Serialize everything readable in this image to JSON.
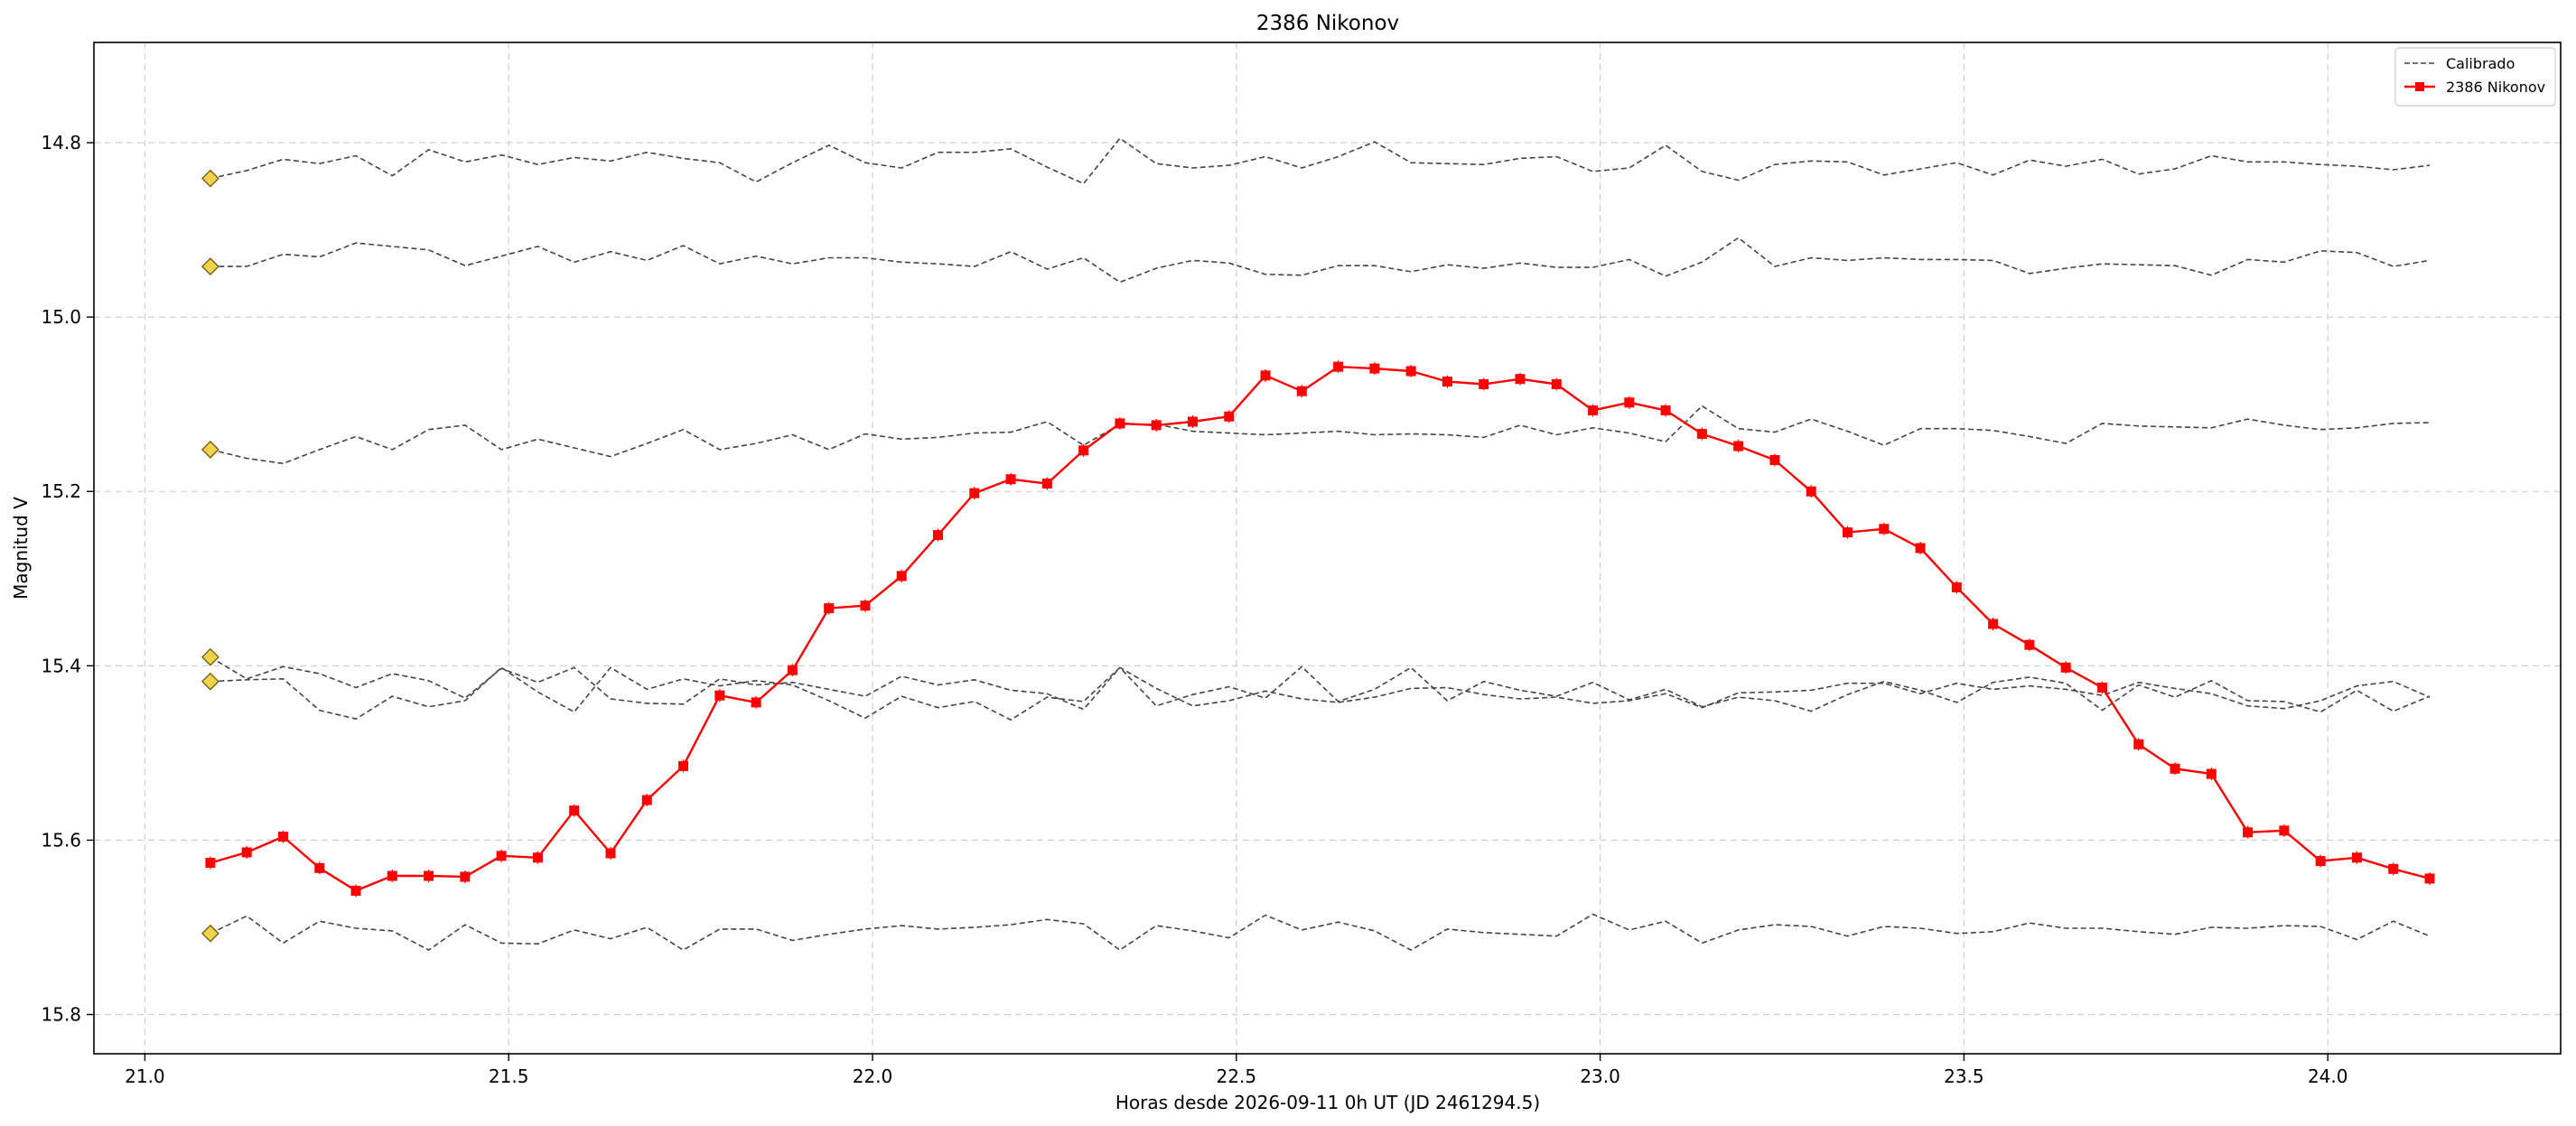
{
  "chart_data": {
    "type": "line",
    "title": "2386 Nikonov",
    "xlabel": "Horas desde 2026-09-11 0h UT (JD 2461294.5)",
    "ylabel": "Magnitud V",
    "xlim": [
      20.93,
      24.32
    ],
    "ylim": [
      15.845,
      14.685
    ],
    "y_inverted": true,
    "grid": true,
    "legend_position": "top-right",
    "x_ticks": [
      21.0,
      21.5,
      22.0,
      22.5,
      23.0,
      23.5,
      24.0
    ],
    "x_tick_labels": [
      "21.0",
      "21.5",
      "22.0",
      "22.5",
      "23.0",
      "23.5",
      "24.0"
    ],
    "y_ticks": [
      14.8,
      15.0,
      15.2,
      15.4,
      15.6,
      15.8
    ],
    "y_tick_labels": [
      "14.8",
      "15.0",
      "15.2",
      "15.4",
      "15.6",
      "15.8"
    ],
    "legend": [
      {
        "label": "Calibrado",
        "style": "dashed",
        "color": "#444444"
      },
      {
        "label": "2386 Nikonov",
        "style": "line-square",
        "color": "#ff0000"
      }
    ],
    "x_start": 21.09,
    "x_step": 0.05,
    "target": {
      "name": "2386 Nikonov",
      "color": "#ff0000",
      "values": [
        15.626,
        15.614,
        15.596,
        15.632,
        15.658,
        15.641,
        15.641,
        15.642,
        15.618,
        15.62,
        15.566,
        15.615,
        15.554,
        15.515,
        15.434,
        15.442,
        15.405,
        15.334,
        15.331,
        15.297,
        15.25,
        15.202,
        15.186,
        15.191,
        15.153,
        15.122,
        15.124,
        15.12,
        15.114,
        15.067,
        15.085,
        15.057,
        15.059,
        15.062,
        15.074,
        15.077,
        15.071,
        15.077,
        15.107,
        15.098,
        15.107,
        15.134,
        15.148,
        15.164,
        15.2,
        15.247,
        15.243,
        15.265,
        15.31,
        15.352,
        15.376,
        15.402,
        15.425,
        15.49,
        15.518,
        15.524,
        15.591,
        15.589,
        15.624,
        15.62,
        15.633,
        15.644
      ]
    },
    "calibrated": {
      "label": "Calibrado",
      "color": "#444444",
      "series": [
        {
          "start_marker": 14.841,
          "values": [
            14.841,
            14.832,
            14.819,
            14.824,
            14.815,
            14.838,
            14.808,
            14.822,
            14.814,
            14.825,
            14.817,
            14.821,
            14.811,
            14.818,
            14.823,
            14.845,
            14.823,
            14.803,
            14.823,
            14.829,
            14.811,
            14.811,
            14.807,
            14.828,
            14.847,
            14.795,
            14.824,
            14.829,
            14.826,
            14.816,
            14.829,
            14.816,
            14.799,
            14.823,
            14.824,
            14.825,
            14.818,
            14.816,
            14.833,
            14.829,
            14.803,
            14.833,
            14.843,
            14.825,
            14.821,
            14.822,
            14.837,
            14.83,
            14.823,
            14.837,
            14.82,
            14.827,
            14.819,
            14.836,
            14.83,
            14.815,
            14.822,
            14.822,
            14.825,
            14.827,
            14.831,
            14.826
          ]
        },
        {
          "start_marker": 14.942,
          "values": [
            14.942,
            14.942,
            14.928,
            14.931,
            14.915,
            14.919,
            14.923,
            14.941,
            14.93,
            14.919,
            14.937,
            14.925,
            14.935,
            14.918,
            14.939,
            14.93,
            14.939,
            14.932,
            14.932,
            14.937,
            14.939,
            14.942,
            14.925,
            14.945,
            14.932,
            14.96,
            14.944,
            14.935,
            14.938,
            14.951,
            14.952,
            14.941,
            14.941,
            14.948,
            14.94,
            14.944,
            14.938,
            14.943,
            14.943,
            14.934,
            14.953,
            14.937,
            14.909,
            14.942,
            14.932,
            14.935,
            14.932,
            14.934,
            14.934,
            14.935,
            14.95,
            14.944,
            14.939,
            14.94,
            14.941,
            14.952,
            14.934,
            14.937,
            14.924,
            14.926,
            14.942,
            14.935
          ]
        },
        {
          "start_marker": 15.152,
          "values": [
            15.152,
            15.162,
            15.168,
            15.152,
            15.137,
            15.152,
            15.129,
            15.124,
            15.152,
            15.14,
            15.15,
            15.16,
            15.145,
            15.129,
            15.152,
            15.145,
            15.135,
            15.152,
            15.134,
            15.14,
            15.138,
            15.133,
            15.132,
            15.12,
            15.147,
            15.123,
            15.123,
            15.131,
            15.133,
            15.135,
            15.133,
            15.131,
            15.135,
            15.134,
            15.135,
            15.138,
            15.124,
            15.135,
            15.127,
            15.133,
            15.143,
            15.102,
            15.128,
            15.132,
            15.117,
            15.131,
            15.147,
            15.128,
            15.128,
            15.13,
            15.137,
            15.145,
            15.122,
            15.125,
            15.126,
            15.127,
            15.117,
            15.124,
            15.129,
            15.127,
            15.122,
            15.121
          ]
        },
        {
          "start_marker": 15.39,
          "values": [
            15.39,
            15.415,
            15.401,
            15.409,
            15.425,
            15.409,
            15.417,
            15.437,
            15.403,
            15.419,
            15.402,
            15.438,
            15.443,
            15.444,
            15.415,
            15.422,
            15.419,
            15.427,
            15.435,
            15.412,
            15.422,
            15.416,
            15.428,
            15.432,
            15.45,
            15.402,
            15.426,
            15.446,
            15.44,
            15.429,
            15.438,
            15.442,
            15.436,
            15.426,
            15.425,
            15.433,
            15.438,
            15.436,
            15.443,
            15.44,
            15.432,
            15.448,
            15.431,
            15.43,
            15.428,
            15.42,
            15.42,
            15.432,
            15.42,
            15.427,
            15.423,
            15.427,
            15.434,
            15.419,
            15.426,
            15.432,
            15.446,
            15.449,
            15.44,
            15.423,
            15.418,
            15.436
          ]
        },
        {
          "start_marker": 15.418,
          "values": [
            15.418,
            15.416,
            15.415,
            15.451,
            15.461,
            15.435,
            15.447,
            15.44,
            15.402,
            15.43,
            15.453,
            15.402,
            15.427,
            15.415,
            15.423,
            15.417,
            15.422,
            15.44,
            15.46,
            15.435,
            15.448,
            15.441,
            15.462,
            15.436,
            15.441,
            15.402,
            15.446,
            15.433,
            15.424,
            15.437,
            15.401,
            15.441,
            15.427,
            15.402,
            15.44,
            15.418,
            15.428,
            15.435,
            15.419,
            15.439,
            15.427,
            15.447,
            15.436,
            15.44,
            15.452,
            15.433,
            15.418,
            15.428,
            15.442,
            15.419,
            15.413,
            15.42,
            15.451,
            15.422,
            15.436,
            15.417,
            15.44,
            15.441,
            15.453,
            15.428,
            15.452,
            15.435
          ]
        },
        {
          "start_marker": 15.707,
          "values": [
            15.707,
            15.687,
            15.718,
            15.693,
            15.701,
            15.704,
            15.726,
            15.697,
            15.718,
            15.719,
            15.703,
            15.713,
            15.7,
            15.726,
            15.702,
            15.702,
            15.715,
            15.708,
            15.702,
            15.698,
            15.702,
            15.7,
            15.697,
            15.691,
            15.696,
            15.726,
            15.698,
            15.704,
            15.712,
            15.686,
            15.703,
            15.694,
            15.704,
            15.726,
            15.702,
            15.706,
            15.708,
            15.71,
            15.685,
            15.703,
            15.693,
            15.718,
            15.703,
            15.697,
            15.699,
            15.71,
            15.699,
            15.701,
            15.707,
            15.705,
            15.695,
            15.701,
            15.701,
            15.705,
            15.708,
            15.7,
            15.701,
            15.698,
            15.699,
            15.714,
            15.693,
            15.71
          ]
        }
      ]
    }
  }
}
